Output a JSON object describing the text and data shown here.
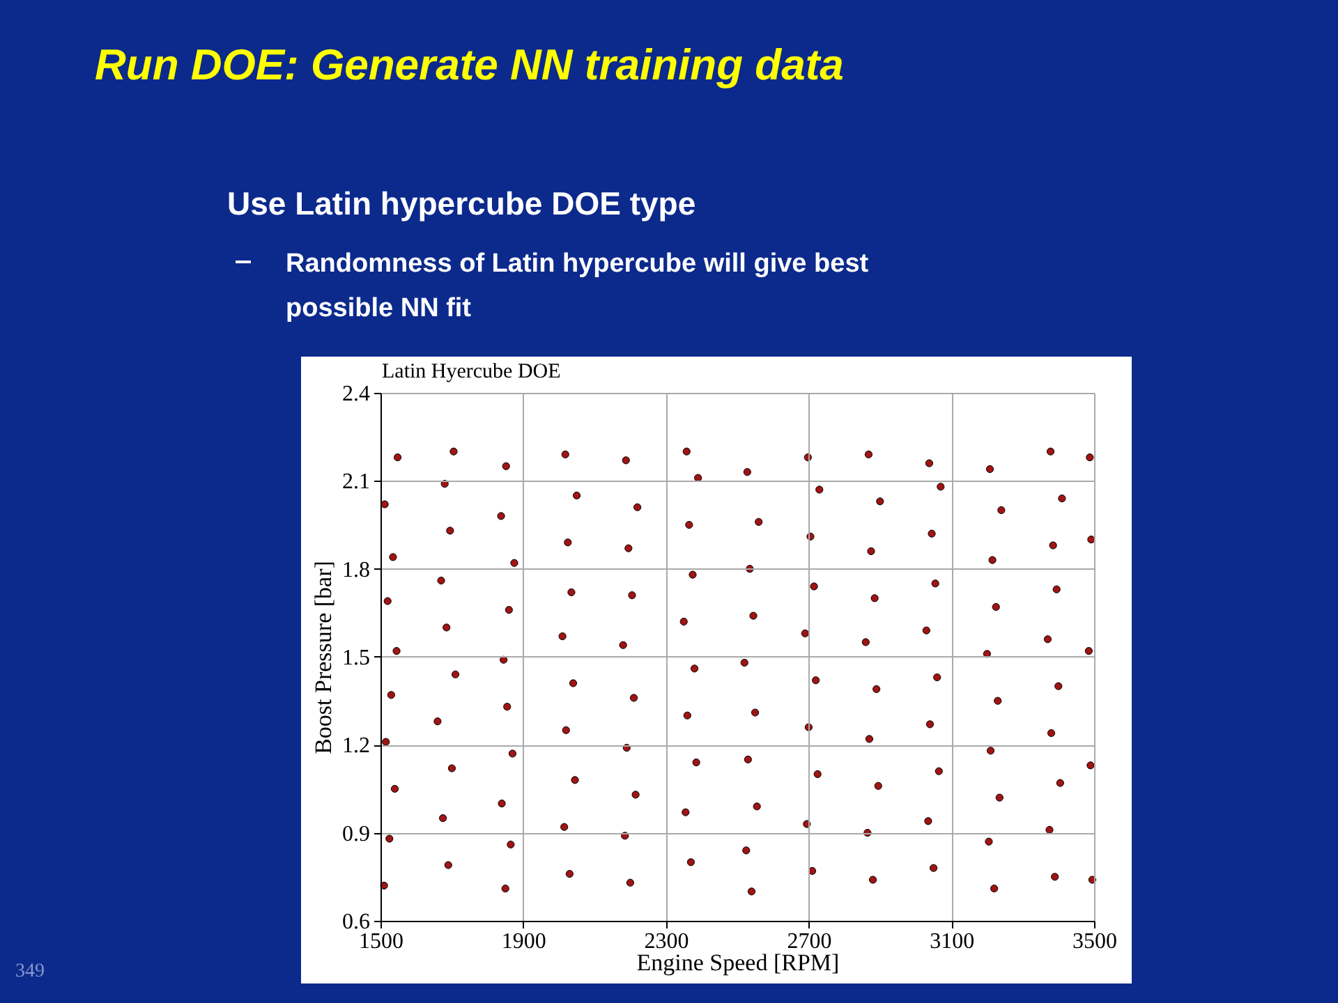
{
  "chart_data": {
    "type": "scatter",
    "title": "Latin Hyercube DOE",
    "annotations": [
      "Run DOE: Generate NN training data",
      "Use Latin hypercube DOE type",
      "Randomness of Latin hypercube will give best possible NN fit",
      "349"
    ],
    "xlabel": "Engine Speed [RPM]",
    "ylabel": "Boost Pressure [bar]",
    "xlim": [
      1500,
      3500
    ],
    "xticks": [
      1500,
      1900,
      2300,
      2700,
      3100,
      3500
    ],
    "ylim": [
      0.6,
      2.4
    ],
    "yticks": [
      0.6,
      0.9,
      1.2,
      1.5,
      1.8,
      2.1,
      2.4
    ],
    "grid": true,
    "marker": "circle",
    "series": [
      {
        "color": "#a01414",
        "x": [
          1510,
          1525,
          1540,
          1515,
          1530,
          1545,
          1520,
          1535,
          1512,
          1548,
          1690,
          1675,
          1700,
          1660,
          1710,
          1685,
          1670,
          1695,
          1680,
          1705,
          1850,
          1865,
          1840,
          1870,
          1855,
          1845,
          1860,
          1875,
          1838,
          1852,
          2030,
          2015,
          2045,
          2020,
          2040,
          2010,
          2035,
          2025,
          2050,
          2018,
          2200,
          2185,
          2215,
          2190,
          2210,
          2180,
          2205,
          2195,
          2220,
          2188,
          2370,
          2355,
          2385,
          2360,
          2380,
          2350,
          2375,
          2365,
          2390,
          2358,
          2540,
          2525,
          2555,
          2530,
          2550,
          2520,
          2545,
          2535,
          2560,
          2528,
          2710,
          2695,
          2725,
          2700,
          2720,
          2690,
          2715,
          2705,
          2730,
          2698,
          2880,
          2865,
          2895,
          2870,
          2890,
          2860,
          2885,
          2875,
          2900,
          2868,
          3050,
          3035,
          3065,
          3040,
          3060,
          3030,
          3055,
          3045,
          3070,
          3038,
          3220,
          3205,
          3235,
          3210,
          3230,
          3200,
          3225,
          3215,
          3240,
          3208,
          3390,
          3375,
          3405,
          3380,
          3400,
          3370,
          3395,
          3385,
          3410,
          3378,
          3495,
          3490,
          3485,
          3492,
          3488
        ],
        "values": [
          0.72,
          0.88,
          1.05,
          1.21,
          1.37,
          1.52,
          1.69,
          1.84,
          2.02,
          2.18,
          0.79,
          0.95,
          1.12,
          1.28,
          1.44,
          1.6,
          1.76,
          1.93,
          2.09,
          2.2,
          0.71,
          0.86,
          1.0,
          1.17,
          1.33,
          1.49,
          1.66,
          1.82,
          1.98,
          2.15,
          0.76,
          0.92,
          1.08,
          1.25,
          1.41,
          1.57,
          1.72,
          1.89,
          2.05,
          2.19,
          0.73,
          0.89,
          1.03,
          1.19,
          1.36,
          1.54,
          1.71,
          1.87,
          2.01,
          2.17,
          0.8,
          0.97,
          1.14,
          1.3,
          1.46,
          1.62,
          1.78,
          1.95,
          2.11,
          2.2,
          0.7,
          0.84,
          0.99,
          1.15,
          1.31,
          1.48,
          1.64,
          1.8,
          1.96,
          2.13,
          0.77,
          0.93,
          1.1,
          1.26,
          1.42,
          1.58,
          1.74,
          1.91,
          2.07,
          2.18,
          0.74,
          0.9,
          1.06,
          1.22,
          1.39,
          1.55,
          1.7,
          1.86,
          2.03,
          2.19,
          0.78,
          0.94,
          1.11,
          1.27,
          1.43,
          1.59,
          1.75,
          1.92,
          2.08,
          2.16,
          0.71,
          0.87,
          1.02,
          1.18,
          1.35,
          1.51,
          1.67,
          1.83,
          2.0,
          2.14,
          0.75,
          0.91,
          1.07,
          1.24,
          1.4,
          1.56,
          1.73,
          1.88,
          2.04,
          2.2,
          0.74,
          1.13,
          1.52,
          1.9,
          2.18
        ]
      }
    ]
  }
}
